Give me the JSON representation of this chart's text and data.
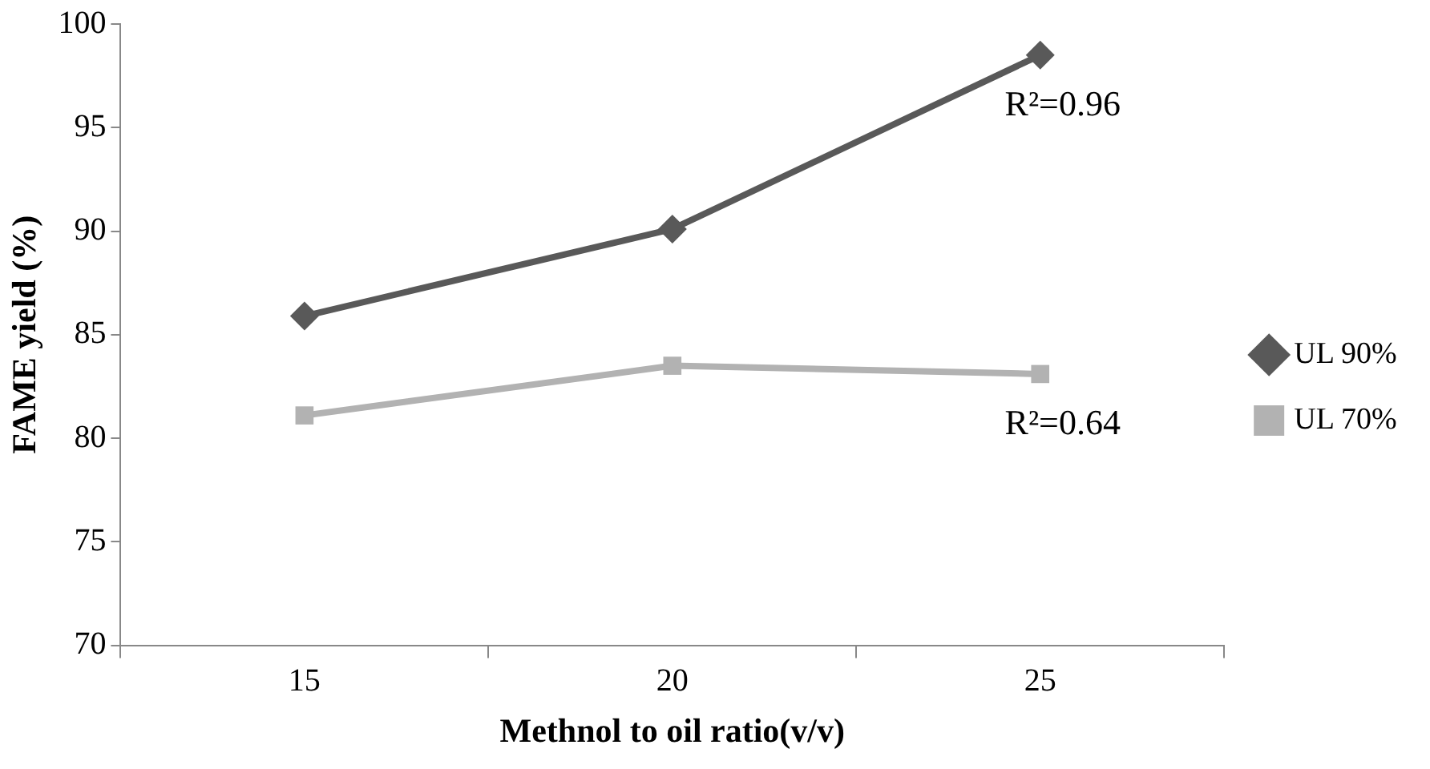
{
  "chart_data": {
    "type": "line",
    "xlabel": "Methnol to oil ratio(v/v)",
    "ylabel": "FAME yield (%)",
    "categories": [
      "15",
      "20",
      "25"
    ],
    "series": [
      {
        "name": "UL 90%",
        "color": "#595959",
        "marker": "diamond",
        "values": [
          85.9,
          90.1,
          98.5
        ]
      },
      {
        "name": "UL 70%",
        "color": "#b2b2b2",
        "marker": "square",
        "values": [
          81.1,
          83.5,
          83.1
        ]
      }
    ],
    "ylim": [
      70,
      100
    ],
    "yticks": [
      70,
      75,
      80,
      85,
      90,
      95,
      100
    ],
    "grid": false,
    "legend": "right",
    "annotations": [
      "R²=0.96",
      "R²=0.64"
    ]
  }
}
